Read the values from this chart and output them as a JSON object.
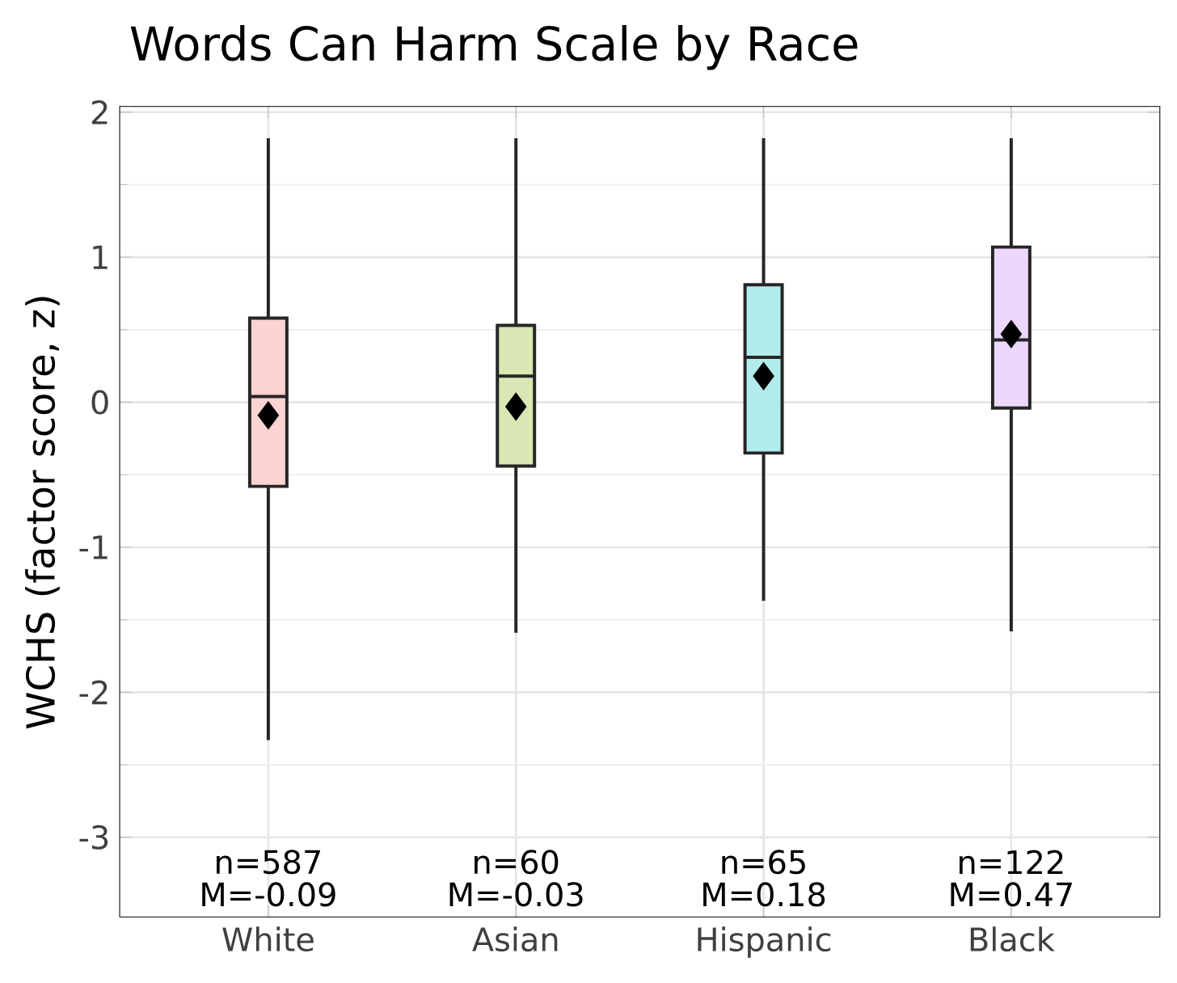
{
  "chart_data": {
    "type": "box",
    "title": "Words Can Harm Scale by Race",
    "ylabel": "WCHS (factor score, z)",
    "categories": [
      "White",
      "Asian",
      "Hispanic",
      "Black"
    ],
    "colors": [
      "#fbd3d1",
      "#d8e7b3",
      "#b2ecec",
      "#ecd7fd"
    ],
    "boxes": [
      {
        "low": -2.33,
        "q1": -0.58,
        "median": 0.04,
        "q3": 0.58,
        "high": 1.82,
        "mean": -0.09
      },
      {
        "low": -1.59,
        "q1": -0.44,
        "median": 0.18,
        "q3": 0.53,
        "high": 1.82,
        "mean": -0.03
      },
      {
        "low": -1.37,
        "q1": -0.35,
        "median": 0.31,
        "q3": 0.81,
        "high": 1.82,
        "mean": 0.18
      },
      {
        "low": -1.58,
        "q1": -0.04,
        "median": 0.43,
        "q3": 1.07,
        "high": 1.82,
        "mean": 0.47
      }
    ],
    "ylim": [
      -3.55,
      2.04
    ],
    "yticks": [
      -3,
      -2,
      -1,
      0,
      1,
      2
    ],
    "grid": true,
    "marker": "diamond",
    "annotations": [
      "n=587",
      "M=-0.09",
      "n=60",
      "M=-0.03",
      "n=65",
      "M=0.18",
      "n=122",
      "M=0.47"
    ]
  }
}
